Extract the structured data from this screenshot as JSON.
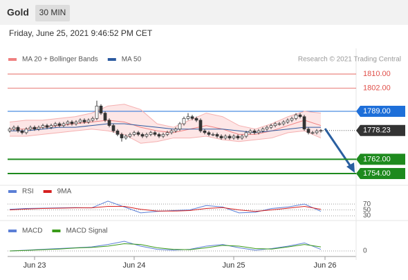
{
  "header": {
    "title": "Gold",
    "interval": "30 MIN",
    "timestamp": "Friday, June 25, 2021 9:46:52 PM CET"
  },
  "chart_data": [
    {
      "type": "candlestick",
      "legend": [
        {
          "name": "MA 20 + Bollinger Bands",
          "color": "#f08080"
        },
        {
          "name": "MA 50",
          "color": "#2c5aa0"
        }
      ],
      "credit": "Research © 2021 Trading Central",
      "open": [
        1778,
        1779,
        1780,
        1778,
        1777,
        1779,
        1780,
        1779,
        1780,
        1781,
        1780,
        1781,
        1782,
        1781,
        1782,
        1783,
        1782,
        1783,
        1784,
        1783,
        1784,
        1785,
        1792,
        1788,
        1784,
        1781,
        1778,
        1776,
        1774,
        1775,
        1776,
        1777,
        1776,
        1775,
        1776,
        1777,
        1776,
        1775,
        1776,
        1777,
        1778,
        1779,
        1782,
        1785,
        1786,
        1785,
        1784,
        1778,
        1777,
        1776,
        1776,
        1775,
        1774,
        1775,
        1774,
        1775,
        1774,
        1775,
        1777,
        1778,
        1777,
        1778,
        1779,
        1780,
        1781,
        1782,
        1782,
        1783,
        1784,
        1785,
        1787,
        1786,
        1779,
        1777,
        1777,
        1778
      ],
      "high": [
        1780,
        1781,
        1781,
        1779,
        1780,
        1781,
        1781,
        1781,
        1782,
        1782,
        1782,
        1783,
        1783,
        1783,
        1784,
        1784,
        1784,
        1785,
        1785,
        1785,
        1786,
        1795,
        1793,
        1789,
        1785,
        1782,
        1779,
        1777,
        1776,
        1777,
        1778,
        1778,
        1777,
        1777,
        1778,
        1778,
        1777,
        1777,
        1778,
        1779,
        1780,
        1783,
        1786,
        1788,
        1787,
        1786,
        1785,
        1779,
        1778,
        1777,
        1777,
        1776,
        1776,
        1776,
        1776,
        1776,
        1776,
        1778,
        1779,
        1779,
        1779,
        1780,
        1781,
        1782,
        1783,
        1783,
        1784,
        1785,
        1786,
        1788,
        1788,
        1787,
        1780,
        1778,
        1779,
        1779
      ],
      "low": [
        1777,
        1778,
        1777,
        1776,
        1776,
        1778,
        1778,
        1778,
        1779,
        1779,
        1779,
        1780,
        1780,
        1780,
        1781,
        1781,
        1781,
        1782,
        1782,
        1782,
        1783,
        1784,
        1787,
        1783,
        1780,
        1777,
        1775,
        1772,
        1773,
        1774,
        1775,
        1775,
        1774,
        1774,
        1775,
        1775,
        1774,
        1774,
        1775,
        1776,
        1777,
        1778,
        1781,
        1784,
        1784,
        1783,
        1777,
        1776,
        1775,
        1775,
        1774,
        1773,
        1773,
        1773,
        1773,
        1773,
        1773,
        1774,
        1776,
        1776,
        1776,
        1777,
        1778,
        1779,
        1780,
        1781,
        1781,
        1782,
        1783,
        1784,
        1785,
        1778,
        1776,
        1776,
        1776,
        1777
      ],
      "close": [
        1779,
        1780,
        1778,
        1777,
        1779,
        1780,
        1779,
        1780,
        1781,
        1780,
        1781,
        1782,
        1781,
        1782,
        1783,
        1782,
        1783,
        1784,
        1783,
        1784,
        1785,
        1792,
        1788,
        1784,
        1781,
        1778,
        1776,
        1774,
        1775,
        1776,
        1777,
        1776,
        1775,
        1776,
        1777,
        1776,
        1775,
        1776,
        1777,
        1778,
        1779,
        1782,
        1785,
        1786,
        1785,
        1784,
        1778,
        1777,
        1776,
        1776,
        1775,
        1774,
        1775,
        1774,
        1775,
        1774,
        1775,
        1777,
        1778,
        1777,
        1778,
        1779,
        1780,
        1781,
        1782,
        1782,
        1783,
        1784,
        1785,
        1787,
        1786,
        1779,
        1777,
        1777,
        1778,
        1778.23
      ],
      "ma20": [
        1779,
        1779,
        1780,
        1781,
        1782,
        1783,
        1784,
        1783,
        1780,
        1778,
        1777,
        1779,
        1781,
        1779,
        1776,
        1776,
        1778,
        1781,
        1784,
        1781
      ],
      "ma50": [
        1778,
        1778,
        1779,
        1780,
        1780,
        1781,
        1782,
        1782,
        1781,
        1780,
        1779,
        1779,
        1779,
        1779,
        1778,
        1777,
        1778,
        1779,
        1780,
        1780
      ],
      "upper_band": [
        1783,
        1784,
        1784,
        1785,
        1786,
        1788,
        1792,
        1793,
        1790,
        1782,
        1780,
        1784,
        1788,
        1786,
        1781,
        1779,
        1782,
        1786,
        1789,
        1788
      ],
      "lower_band": [
        1775,
        1775,
        1776,
        1777,
        1778,
        1779,
        1778,
        1776,
        1771,
        1772,
        1774,
        1774,
        1775,
        1773,
        1772,
        1773,
        1774,
        1777,
        1778,
        1774
      ],
      "levels": [
        {
          "value": 1810,
          "label": "1810.00",
          "color": "#e0504a",
          "style": "text"
        },
        {
          "value": 1802,
          "label": "1802.00",
          "color": "#e0504a",
          "style": "text"
        },
        {
          "value": 1789,
          "label": "1789.00",
          "color": "#1e6fd9",
          "style": "box"
        },
        {
          "value": 1778.23,
          "label": "1778.23",
          "color": "#333333",
          "style": "current"
        },
        {
          "value": 1762,
          "label": "1762.00",
          "color": "#1e8a1e",
          "style": "box"
        },
        {
          "value": 1754,
          "label": "1754.00",
          "color": "#1e8a1e",
          "style": "box"
        }
      ],
      "ylim": [
        1749.7,
        1814.7
      ],
      "xticks": [
        {
          "value": 6,
          "label": "Jun 23"
        },
        {
          "value": 30,
          "label": "Jun 24"
        },
        {
          "value": 54,
          "label": "Jun 25"
        },
        {
          "value": 76,
          "label": "Jun 26"
        }
      ]
    },
    {
      "type": "line",
      "series": [
        {
          "name": "RSI",
          "color": "#5b7fd6",
          "values": [
            52,
            55,
            56,
            57,
            58,
            57,
            80,
            60,
            40,
            45,
            48,
            50,
            65,
            60,
            40,
            42,
            55,
            60,
            70,
            45
          ]
        },
        {
          "name": "9MA",
          "color": "#d62020",
          "values": [
            50,
            53,
            55,
            56,
            57,
            57,
            62,
            62,
            52,
            46,
            46,
            48,
            55,
            58,
            50,
            45,
            50,
            56,
            62,
            52
          ]
        }
      ],
      "ylim": [
        16,
        94
      ],
      "yticks": [
        70,
        50,
        30
      ]
    },
    {
      "type": "line",
      "series": [
        {
          "name": "MACD",
          "color": "#5b7fd6",
          "values": [
            0,
            0.5,
            1,
            1.5,
            2,
            2.5,
            4,
            6,
            3,
            1,
            0.5,
            1,
            3,
            4,
            2,
            0.5,
            1.5,
            3,
            5,
            1
          ]
        },
        {
          "name": "MACD Signal",
          "color": "#3a9a1a",
          "values": [
            0,
            0.3,
            0.8,
            1.2,
            1.8,
            2.2,
            3,
            4.5,
            4,
            2,
            1,
            0.8,
            2,
            3.5,
            3,
            1.5,
            1.2,
            2.5,
            4,
            2.5
          ]
        }
      ],
      "ylim": [
        -3,
        9
      ],
      "yticks": [
        0
      ]
    }
  ]
}
